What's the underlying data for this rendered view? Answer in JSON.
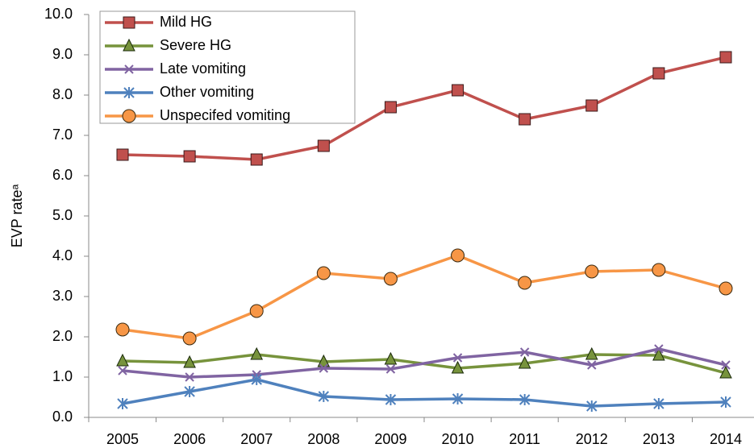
{
  "chart_data": {
    "type": "line",
    "y_label": "EVP rateᵃ",
    "categories": [
      "2005",
      "2006",
      "2007",
      "2008",
      "2009",
      "2010",
      "2011",
      "2012",
      "2013",
      "2014"
    ],
    "series": [
      {
        "name": "Mild HG",
        "color": "#c0504d",
        "marker": "square",
        "values": [
          6.52,
          6.48,
          6.4,
          6.74,
          7.7,
          8.12,
          7.4,
          7.74,
          8.54,
          8.94
        ]
      },
      {
        "name": "Severe HG",
        "color": "#77933c",
        "marker": "triangle",
        "values": [
          1.4,
          1.36,
          1.56,
          1.38,
          1.44,
          1.22,
          1.34,
          1.56,
          1.54,
          1.1
        ]
      },
      {
        "name": "Late vomiting",
        "color": "#8064a2",
        "marker": "x",
        "values": [
          1.16,
          1.0,
          1.06,
          1.22,
          1.2,
          1.48,
          1.62,
          1.3,
          1.7,
          1.3
        ]
      },
      {
        "name": "Other vomiting",
        "color": "#4f81bd",
        "marker": "asterisk",
        "values": [
          0.34,
          0.64,
          0.94,
          0.52,
          0.44,
          0.46,
          0.44,
          0.28,
          0.34,
          0.38
        ]
      },
      {
        "name": "Unspecifed vomiting",
        "color": "#f79646",
        "marker": "circle",
        "values": [
          2.18,
          1.96,
          2.64,
          3.58,
          3.44,
          4.02,
          3.34,
          3.62,
          3.66,
          3.2
        ]
      }
    ],
    "ylim": [
      0,
      10
    ],
    "yticks": [
      {
        "value": 0,
        "label": "0.0"
      },
      {
        "value": 1,
        "label": "1.0"
      },
      {
        "value": 2,
        "label": "2.0"
      },
      {
        "value": 3,
        "label": "3.0"
      },
      {
        "value": 4,
        "label": "4.0"
      },
      {
        "value": 5,
        "label": "5.0"
      },
      {
        "value": 6,
        "label": "6.0"
      },
      {
        "value": 7,
        "label": "7.0"
      },
      {
        "value": 8,
        "label": "8.0"
      },
      {
        "value": 9,
        "label": "9.0"
      },
      {
        "value": 10,
        "label": "10.0"
      }
    ],
    "legend": "upper left"
  }
}
